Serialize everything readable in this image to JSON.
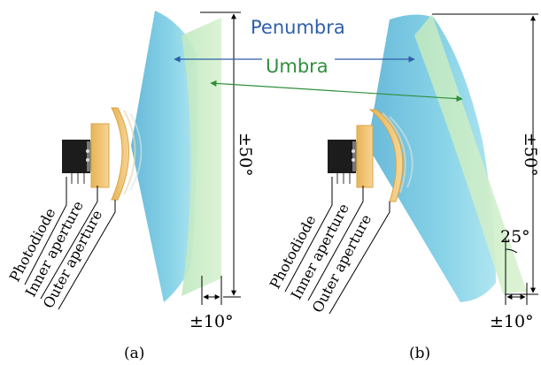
{
  "labels": {
    "penumbra": "Penumbra",
    "umbra": "Umbra",
    "photodiode": "Photodiode",
    "inner_aperture": "Inner aperture",
    "outer_aperture": "Outer aperture",
    "vertical_angle": "±50°",
    "horizontal_angle": "±10°",
    "tilt_angle": "25°"
  },
  "panels": [
    {
      "caption": "(a)"
    },
    {
      "caption": "(b)"
    }
  ],
  "colors": {
    "penumbra_fill": "#7fd0e6",
    "umbra_fill": "#c9ecc4",
    "aperture_fill": "#f2c46e",
    "photodiode_body": "#1c1c1c",
    "penumbra_label": "#2f5fa8",
    "umbra_label": "#2f8f3c"
  }
}
